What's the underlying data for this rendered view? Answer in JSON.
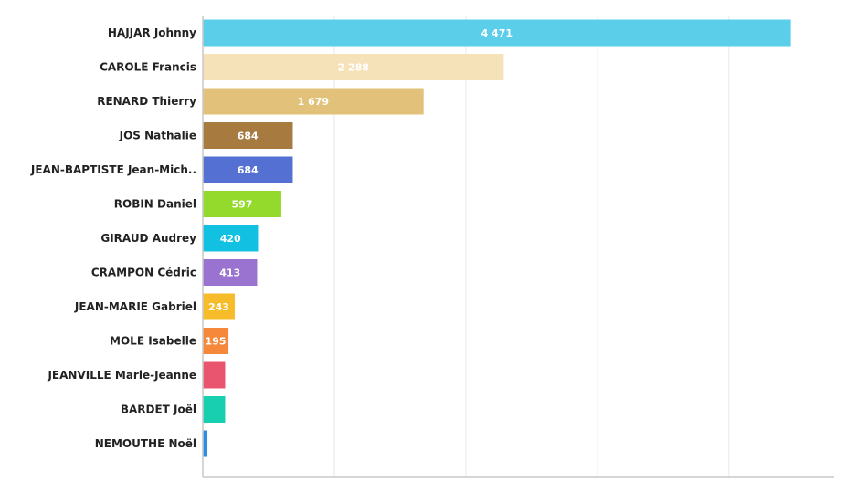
{
  "chart_data": {
    "type": "bar",
    "orientation": "horizontal",
    "title": "",
    "xlabel": "",
    "ylabel": "",
    "xlim": [
      0,
      4800
    ],
    "grid": true,
    "legend": "none",
    "categories": [
      "HAJJAR Johnny",
      "CAROLE Francis",
      "RENARD Thierry",
      "JOS Nathalie",
      "JEAN-BAPTISTE Jean-Mich..",
      "ROBIN Daniel",
      "GIRAUD Audrey",
      "CRAMPON Cédric",
      "JEAN-MARIE Gabriel",
      "MOLE Isabelle",
      "JEANVILLE Marie-Jeanne",
      "BARDET Joël",
      "NEMOUTHE Noël"
    ],
    "values": [
      4471,
      2288,
      1679,
      684,
      684,
      597,
      420,
      413,
      243,
      195,
      170,
      170,
      35
    ],
    "value_labels": [
      "4 471",
      "2 288",
      "1 679",
      "684",
      "684",
      "597",
      "420",
      "413",
      "243",
      "195",
      "",
      "",
      ""
    ],
    "colors": [
      "#5bcfe9",
      "#f5e2b8",
      "#e2c27a",
      "#a77b40",
      "#5470d2",
      "#93da2c",
      "#12c0e2",
      "#9a72cf",
      "#f7bc2a",
      "#f5883a",
      "#e9546f",
      "#18cfb0",
      "#2f8ee0"
    ]
  }
}
